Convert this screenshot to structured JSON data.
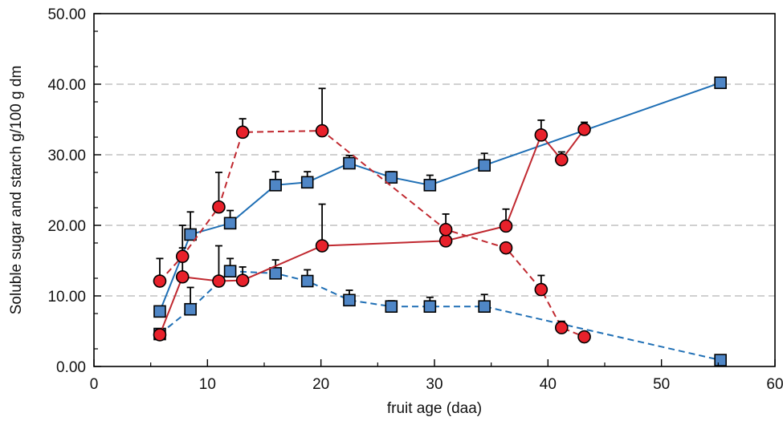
{
  "chart_data": {
    "type": "line",
    "title": "",
    "xlabel": "fruit age (daa)",
    "ylabel": "Soluble sugar and starch g/100 g dm",
    "xlim": [
      0,
      60
    ],
    "ylim": [
      0,
      50
    ],
    "x_ticks": [
      "0",
      "10",
      "20",
      "30",
      "40",
      "50",
      "60"
    ],
    "y_ticks": [
      "0.00",
      "10.00",
      "20.00",
      "30.00",
      "40.00",
      "50.00"
    ],
    "grid": "horizontal dashed",
    "legend": "none",
    "colors": {
      "blue": "#1f6fb5",
      "blue_fill": "#4f86c6",
      "red": "#c0282f",
      "red_fill": "#e8212b"
    },
    "series": [
      {
        "marker": "square",
        "line": "solid",
        "color": "#1f6fb5",
        "fill": "#4f86c6",
        "x": [
          5.8,
          8.5,
          12.0,
          16.0,
          18.8,
          22.5,
          26.2,
          29.6,
          34.4,
          55.2
        ],
        "y": [
          7.8,
          18.7,
          20.3,
          25.7,
          26.1,
          28.8,
          26.8,
          25.7,
          28.5,
          40.2
        ],
        "error": [
          0,
          3.2,
          1.8,
          1.9,
          1.5,
          1.1,
          0.8,
          1.4,
          1.7,
          0
        ]
      },
      {
        "marker": "square",
        "line": "dashed",
        "color": "#1f6fb5",
        "fill": "#4f86c6",
        "x": [
          5.8,
          8.5,
          12.0,
          16.0,
          18.8,
          22.5,
          26.2,
          29.6,
          34.4,
          55.2
        ],
        "y": [
          4.6,
          8.1,
          13.5,
          13.2,
          12.1,
          9.4,
          8.5,
          8.5,
          8.5,
          0.9
        ],
        "error": [
          0,
          3.1,
          1.8,
          1.9,
          1.6,
          1.4,
          0.8,
          1.3,
          1.7,
          0
        ]
      },
      {
        "marker": "circle",
        "line": "solid",
        "color": "#c0282f",
        "fill": "#e8212b",
        "x": [
          5.8,
          7.8,
          11.0,
          13.1,
          20.1,
          31.0,
          36.3,
          39.4,
          41.2,
          43.2
        ],
        "y": [
          4.5,
          12.7,
          12.1,
          12.2,
          17.1,
          17.8,
          19.9,
          32.8,
          29.3,
          33.6
        ],
        "error": [
          0,
          4.1,
          5.0,
          1.9,
          5.9,
          0,
          2.4,
          2.1,
          1.1,
          1.0
        ]
      },
      {
        "marker": "circle",
        "line": "dashed",
        "color": "#c0282f",
        "fill": "#e8212b",
        "x": [
          5.8,
          7.8,
          11.0,
          13.1,
          20.1,
          31.0,
          36.3,
          39.4,
          41.2,
          43.2
        ],
        "y": [
          12.1,
          15.6,
          22.6,
          33.2,
          33.4,
          19.4,
          16.8,
          10.9,
          5.5,
          4.2
        ],
        "error": [
          3.2,
          4.4,
          4.9,
          1.9,
          6.0,
          2.2,
          0,
          2.0,
          0.9,
          0
        ]
      }
    ]
  }
}
